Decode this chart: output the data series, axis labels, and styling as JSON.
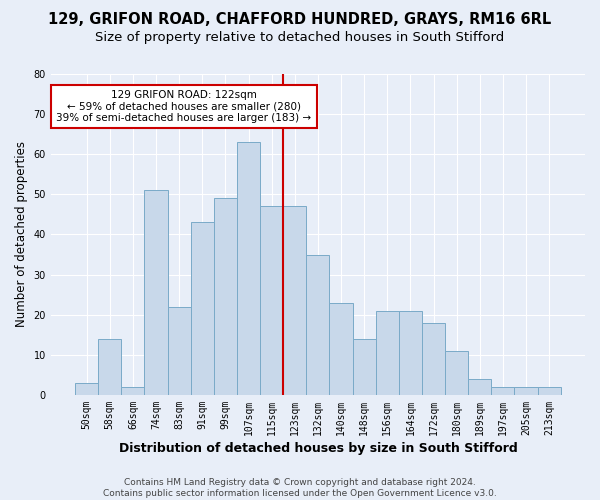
{
  "title_line1": "129, GRIFON ROAD, CHAFFORD HUNDRED, GRAYS, RM16 6RL",
  "title_line2": "Size of property relative to detached houses in South Stifford",
  "xlabel": "Distribution of detached houses by size in South Stifford",
  "ylabel": "Number of detached properties",
  "footnote": "Contains HM Land Registry data © Crown copyright and database right 2024.\nContains public sector information licensed under the Open Government Licence v3.0.",
  "bar_labels": [
    "50sqm",
    "58sqm",
    "66sqm",
    "74sqm",
    "83sqm",
    "91sqm",
    "99sqm",
    "107sqm",
    "115sqm",
    "123sqm",
    "132sqm",
    "140sqm",
    "148sqm",
    "156sqm",
    "164sqm",
    "172sqm",
    "180sqm",
    "189sqm",
    "197sqm",
    "205sqm",
    "213sqm"
  ],
  "bar_values": [
    3,
    14,
    2,
    51,
    22,
    43,
    49,
    63,
    47,
    47,
    35,
    23,
    14,
    21,
    21,
    18,
    11,
    4,
    2,
    2,
    2
  ],
  "bar_color": "#c8d8ea",
  "bar_edge_color": "#7aaac8",
  "vline_index": 8.5,
  "annotation_text": "129 GRIFON ROAD: 122sqm\n← 59% of detached houses are smaller (280)\n39% of semi-detached houses are larger (183) →",
  "annotation_box_facecolor": "#ffffff",
  "annotation_box_edgecolor": "#cc0000",
  "vline_color": "#cc0000",
  "ylim": [
    0,
    80
  ],
  "yticks": [
    0,
    10,
    20,
    30,
    40,
    50,
    60,
    70,
    80
  ],
  "background_color": "#e8eef8",
  "grid_color": "#ffffff",
  "title_fontsize": 10.5,
  "subtitle_fontsize": 9.5,
  "xlabel_fontsize": 9,
  "ylabel_fontsize": 8.5,
  "tick_fontsize": 7,
  "annotation_fontsize": 7.5,
  "footnote_fontsize": 6.5
}
